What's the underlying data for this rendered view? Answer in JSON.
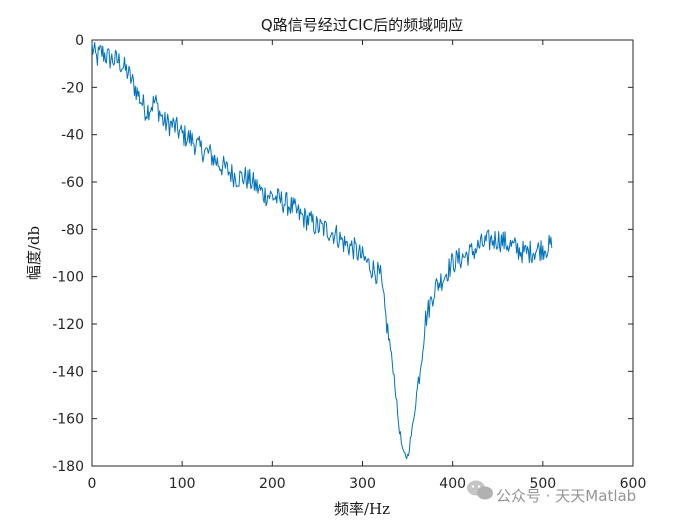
{
  "chart_data": {
    "type": "line",
    "title": "Q路信号经过CIC后的频域响应",
    "xlabel": "频率/Hz",
    "ylabel": "幅度/db",
    "xlim": [
      0,
      600
    ],
    "ylim": [
      -180,
      0
    ],
    "xticks": [
      0,
      100,
      200,
      300,
      400,
      500,
      600
    ],
    "yticks": [
      0,
      -20,
      -40,
      -60,
      -80,
      -100,
      -120,
      -140,
      -160,
      -180
    ],
    "grid": false,
    "legend": "none",
    "series": [
      {
        "color": "#0072BD",
        "x": [
          0,
          5,
          10,
          20,
          30,
          40,
          50,
          60,
          70,
          80,
          90,
          100,
          110,
          120,
          130,
          140,
          150,
          160,
          170,
          180,
          190,
          200,
          210,
          220,
          230,
          240,
          250,
          260,
          270,
          280,
          290,
          300,
          310,
          320,
          325,
          330,
          335,
          340,
          345,
          350,
          355,
          360,
          365,
          370,
          380,
          390,
          400,
          410,
          420,
          430,
          440,
          450,
          460,
          470,
          480,
          490,
          500,
          510
        ],
        "y": [
          -3,
          -8,
          -5,
          -8,
          -9,
          -14,
          -22,
          -30,
          -26,
          -35,
          -36,
          -40,
          -42,
          -46,
          -48,
          -52,
          -55,
          -58,
          -58,
          -61,
          -65,
          -66,
          -68,
          -70,
          -74,
          -76,
          -79,
          -80,
          -82,
          -86,
          -88,
          -92,
          -96,
          -100,
          -115,
          -128,
          -142,
          -162,
          -175,
          -176,
          -165,
          -150,
          -135,
          -118,
          -105,
          -100,
          -94,
          -92,
          -90,
          -87,
          -85,
          -84,
          -86,
          -88,
          -90,
          -89,
          -88,
          -87
        ]
      }
    ]
  },
  "watermark": {
    "text": "公众号 · 天天Matlab",
    "icon": "wechat-icon"
  }
}
